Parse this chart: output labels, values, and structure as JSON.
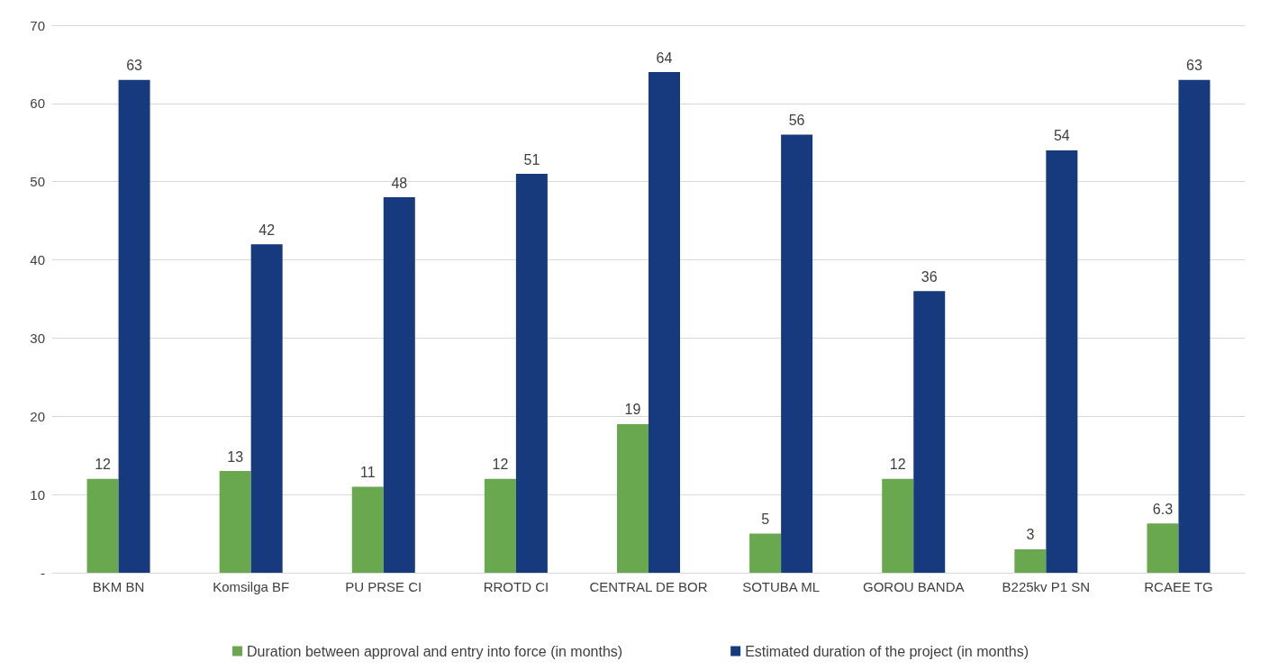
{
  "chart_data": {
    "type": "bar",
    "categories": [
      "BKM BN",
      "Komsilga BF",
      "PU PRSE CI",
      "RROTD CI",
      "CENTRAL DE BOR",
      "SOTUBA ML",
      "GOROU BANDA",
      "B225kv P1 SN",
      "RCAEE TG"
    ],
    "series": [
      {
        "name": "Duration between approval and entry into force (in months)",
        "color": "#6aa84f",
        "values": [
          12,
          13,
          11,
          12,
          19,
          5,
          12,
          3,
          6.3
        ]
      },
      {
        "name": "Estimated duration of the project (in months)",
        "color": "#173a7e",
        "values": [
          63,
          42,
          48,
          51,
          64,
          56,
          36,
          54,
          63
        ]
      }
    ],
    "ylim": [
      0,
      70
    ],
    "yticks": [
      {
        "value": 0,
        "label": "-"
      },
      10,
      20,
      30,
      40,
      50,
      60,
      70
    ],
    "grid": "y",
    "legend": "bottom",
    "data_labels": true
  }
}
